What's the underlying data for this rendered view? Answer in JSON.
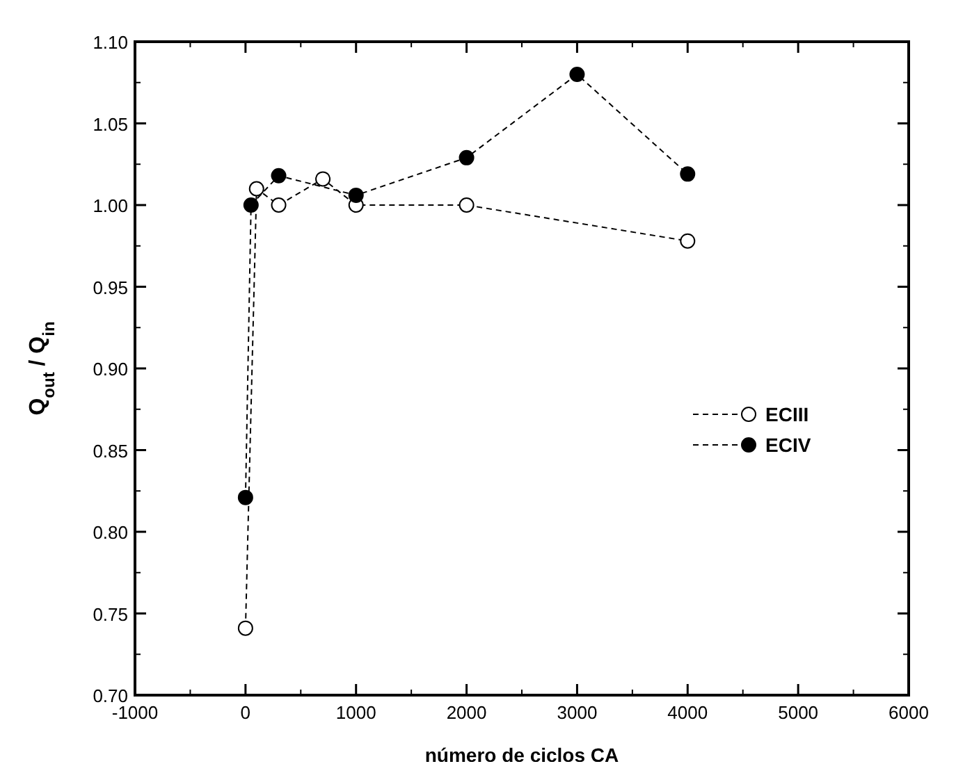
{
  "chart_data": {
    "type": "line",
    "xlabel": "número de ciclos CA",
    "ylabel": "Q$_{out}$ / Q$_{in}$",
    "xlim": [
      -1000,
      6000
    ],
    "xticks": [
      -1000,
      0,
      1000,
      2000,
      3000,
      4000,
      5000,
      6000
    ],
    "ylim": [
      0.7,
      1.1
    ],
    "yticks": [
      {
        "value": 0.7,
        "label": "0.70"
      },
      {
        "value": 0.75,
        "label": "0.75"
      },
      {
        "value": 0.8,
        "label": "0.80"
      },
      {
        "value": 0.85,
        "label": "0.85"
      },
      {
        "value": 0.9,
        "label": "0.90"
      },
      {
        "value": 0.95,
        "label": "0.95"
      },
      {
        "value": 1.0,
        "label": "1.00"
      },
      {
        "value": 1.05,
        "label": "1.05"
      },
      {
        "value": 1.1,
        "label": "1.10"
      }
    ],
    "legend": "right",
    "line_style": "dashed",
    "grid": false,
    "series": [
      {
        "name": "ECIII",
        "color": "#ffffff",
        "marker": "circle",
        "x": [
          0,
          100,
          300,
          700,
          1000,
          2000,
          4000
        ],
        "values": [
          0.741,
          1.01,
          1.0,
          1.016,
          1.0,
          1.0,
          0.978
        ]
      },
      {
        "name": "ECIV",
        "color": "#000000",
        "marker": "circle",
        "x": [
          0,
          50,
          300,
          1000,
          2000,
          3000,
          4000
        ],
        "values": [
          0.821,
          1.0,
          1.018,
          1.006,
          1.029,
          1.08,
          1.019
        ]
      }
    ]
  }
}
